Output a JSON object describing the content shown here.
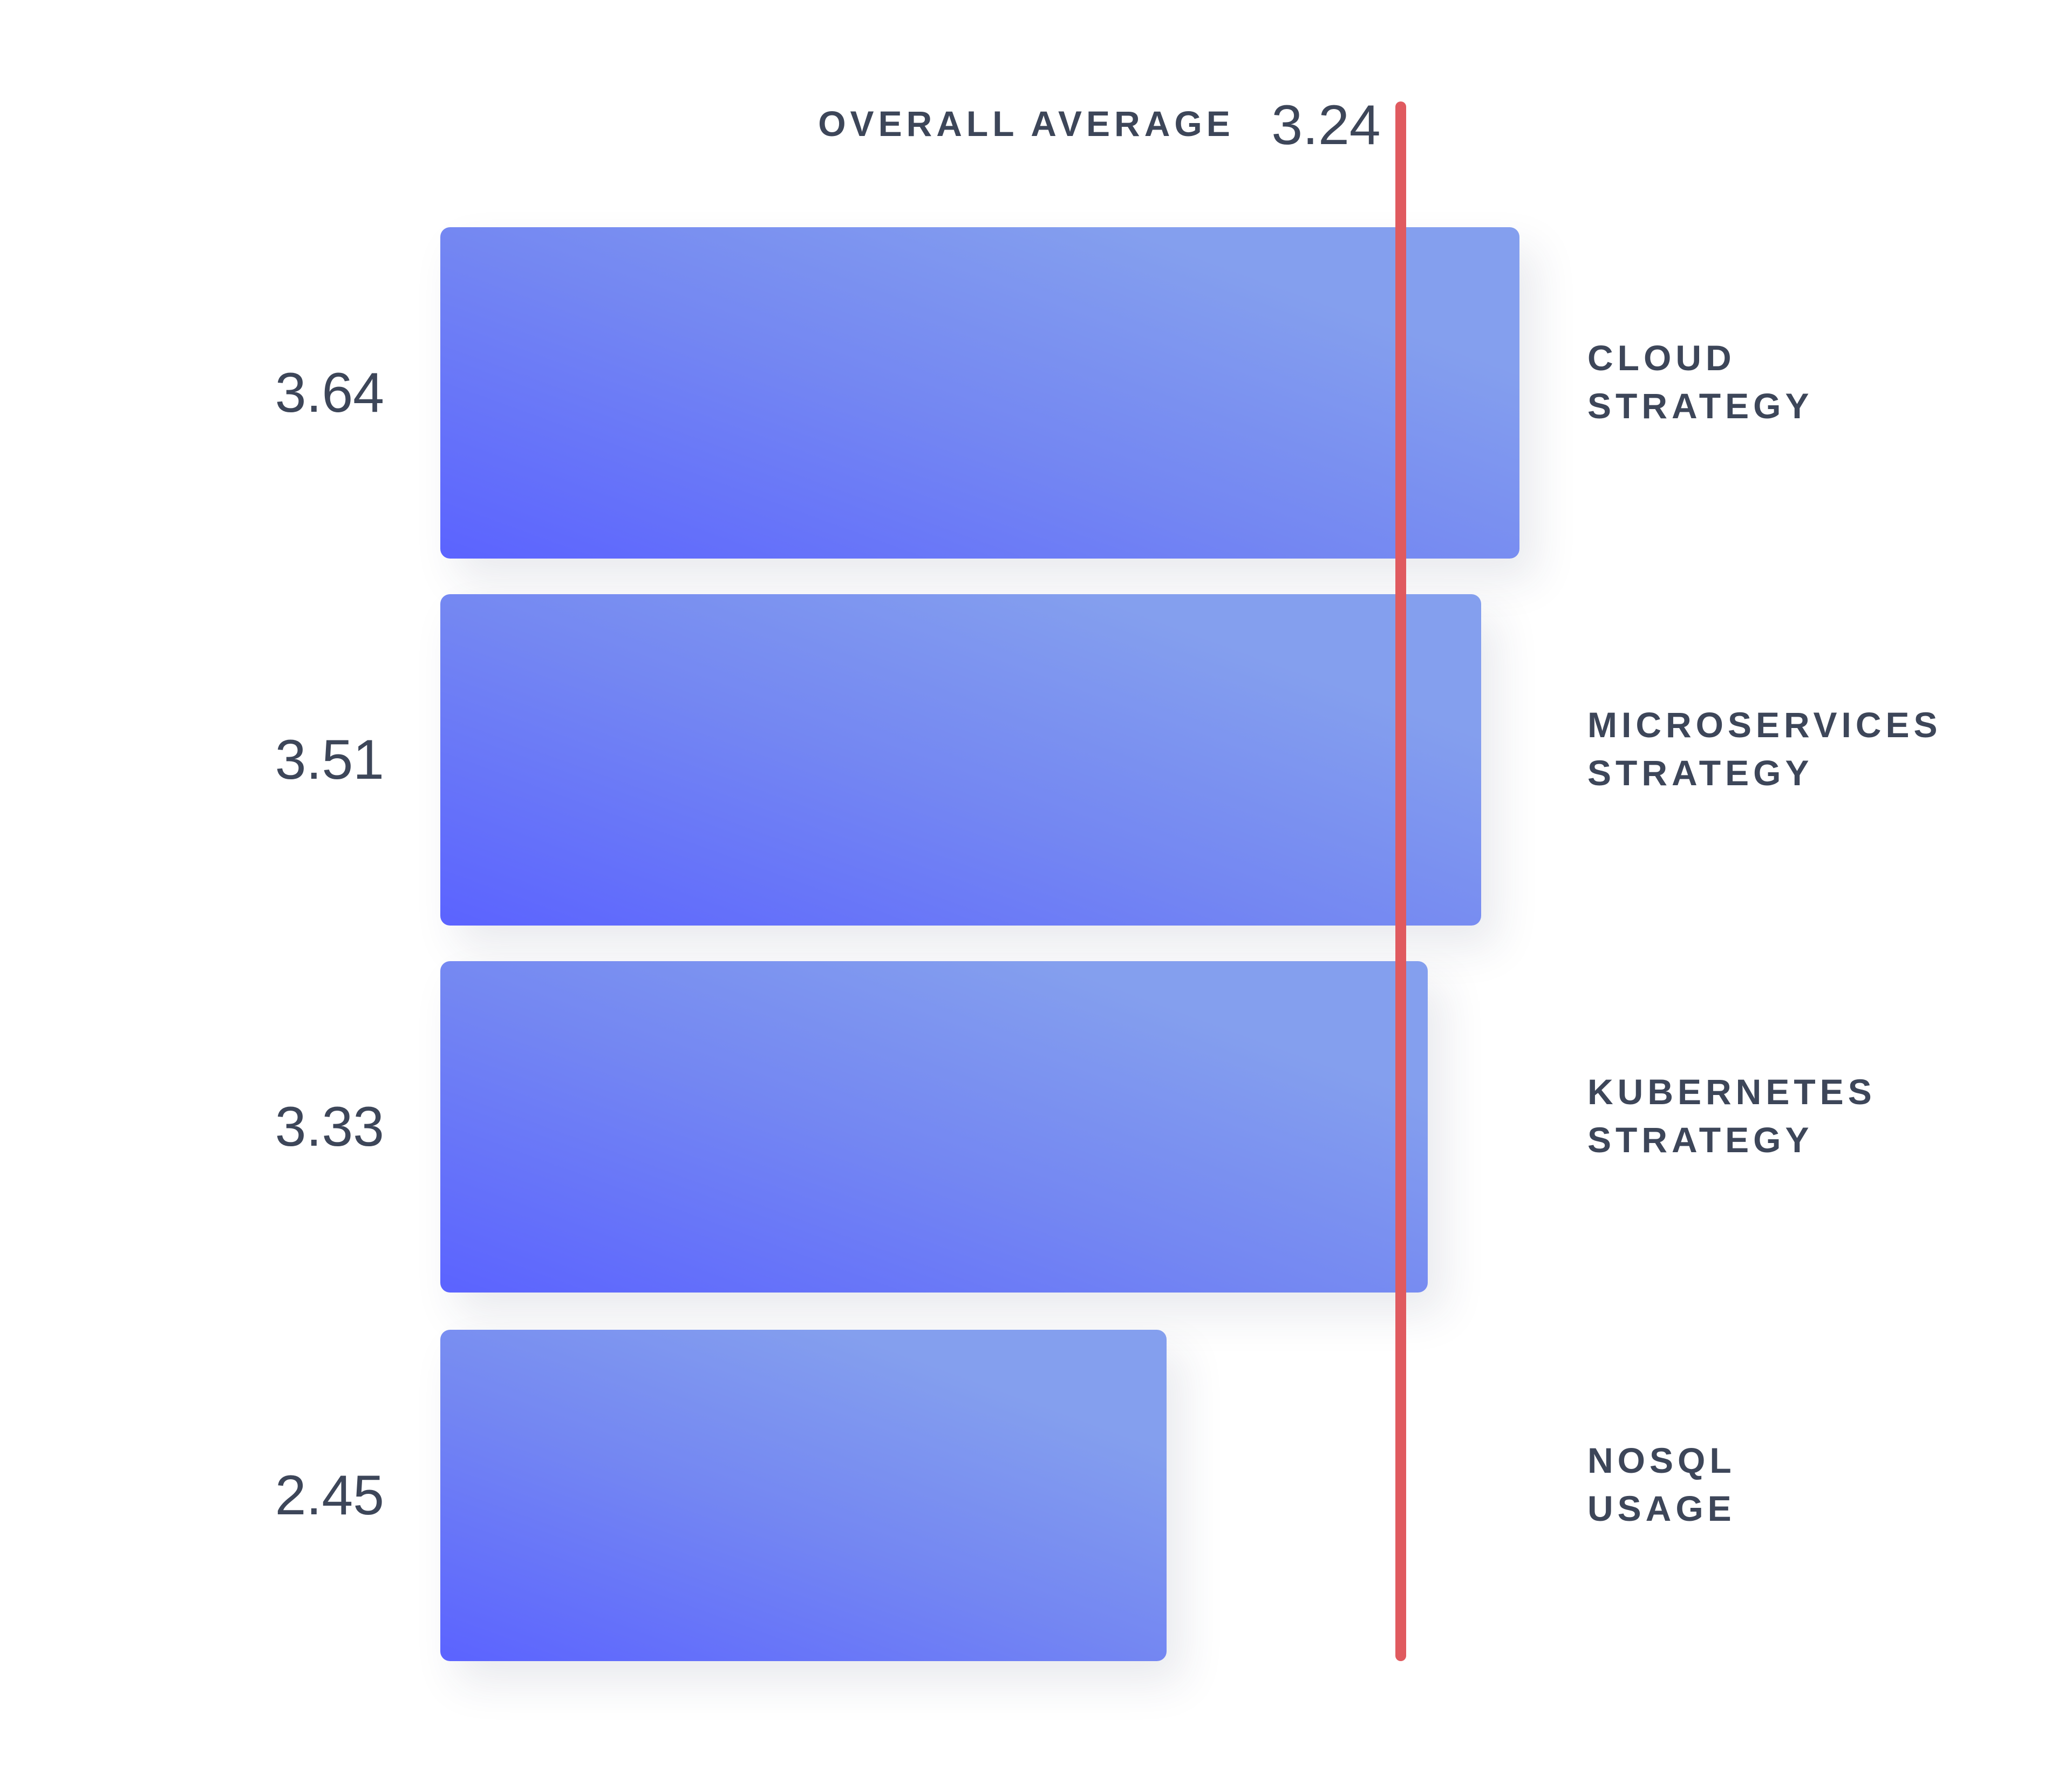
{
  "chart_data": {
    "type": "bar",
    "orientation": "horizontal",
    "categories": [
      "CLOUD STRATEGY",
      "MICROSERVICES STRATEGY",
      "KUBERNETES STRATEGY",
      "NOSQL USAGE"
    ],
    "values": [
      3.64,
      3.51,
      3.33,
      2.45
    ],
    "color": "#849fee",
    "reference_line": {
      "label": "OVERALL AVERAGE",
      "value": 3.24,
      "color": "#e05a5f"
    }
  }
}
